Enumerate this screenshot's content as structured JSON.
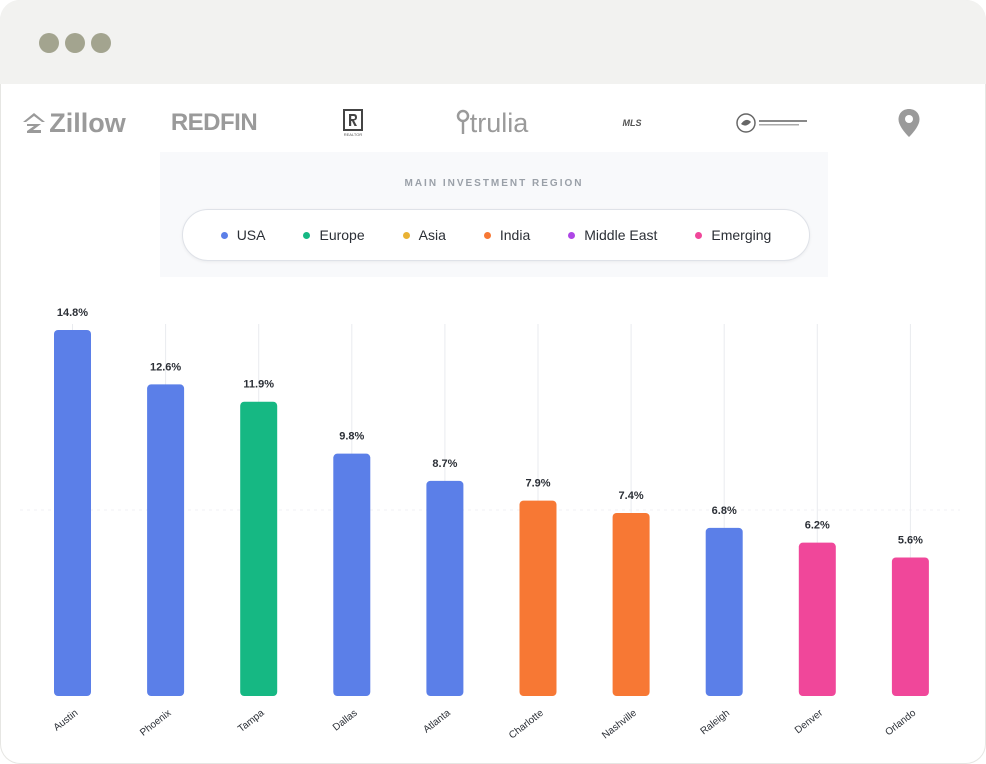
{
  "window": {
    "title_dots": [
      "dot-1",
      "dot-2",
      "dot-3"
    ]
  },
  "logos": {
    "zillow": "Zillow",
    "redfin": "REDFIN",
    "realtor": "REALTOR",
    "trulia": "trulia",
    "mls": "MLS",
    "seal_icon": "seal-logo-icon",
    "pin_icon": "map-pin-icon"
  },
  "legend": {
    "title": "MAIN INVESTMENT REGION",
    "items": [
      {
        "label": "USA",
        "color": "#5b7fe8"
      },
      {
        "label": "Europe",
        "color": "#16b883"
      },
      {
        "label": "Asia",
        "color": "#e9b234"
      },
      {
        "label": "India",
        "color": "#f77834"
      },
      {
        "label": "Middle East",
        "color": "#ae46e6"
      },
      {
        "label": "Emerging",
        "color": "#f0479a"
      }
    ]
  },
  "chart_data": {
    "type": "bar",
    "title": "",
    "xlabel": "",
    "ylabel": "",
    "ylim": [
      0,
      15
    ],
    "grid": "vertical",
    "categories": [
      "Austin",
      "Phoenix",
      "Tampa",
      "Dallas",
      "Atlanta",
      "Charlotte",
      "Nashville",
      "Raleigh",
      "Denver",
      "Orlando"
    ],
    "values": [
      14.8,
      12.6,
      11.9,
      9.8,
      8.7,
      7.9,
      7.4,
      6.8,
      6.2,
      5.6
    ],
    "value_labels": [
      "14.8%",
      "12.6%",
      "11.9%",
      "9.8%",
      "8.7%",
      "7.9%",
      "7.4%",
      "6.8%",
      "6.2%",
      "5.6%"
    ],
    "regions": [
      "USA",
      "USA",
      "Europe",
      "USA",
      "USA",
      "India",
      "India",
      "USA",
      "Emerging",
      "Emerging"
    ]
  }
}
